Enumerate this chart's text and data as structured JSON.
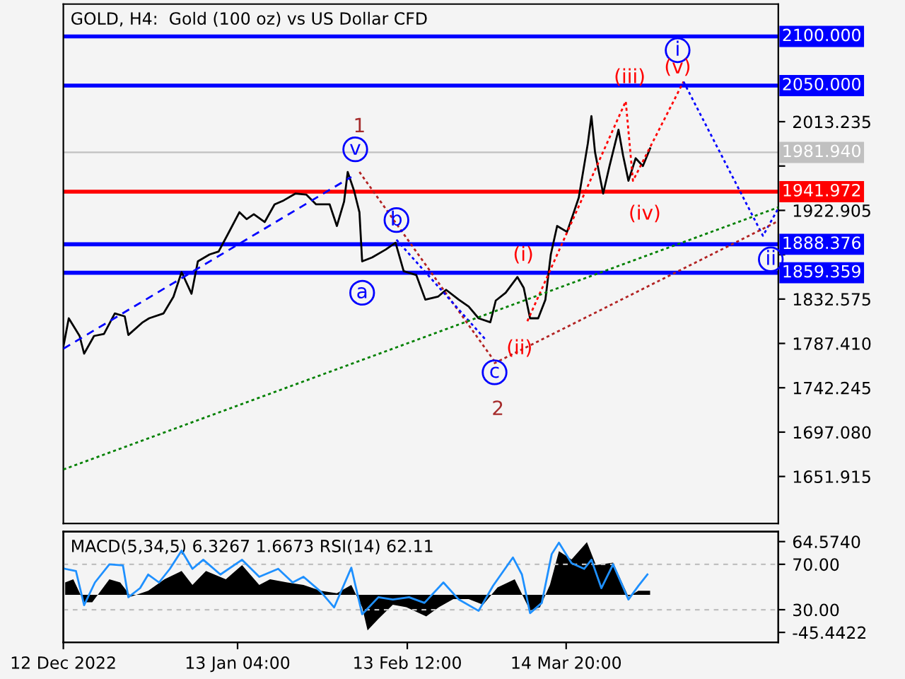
{
  "chart_data": [
    {
      "type": "line",
      "title": "GOLD, H4:  Gold (100 oz) vs US Dollar CFD",
      "series": [
        {
          "color": "#000000",
          "line_style": "solid",
          "x": [
            "2022-12-12T00:00",
            "2022-12-13T00:00",
            "2022-12-15T00:00",
            "2022-12-15T20:00",
            "2022-12-17T16:00",
            "2022-12-19T12:00",
            "2022-12-21T12:00",
            "2022-12-23T08:00",
            "2022-12-24T00:00",
            "2022-12-26T16:00",
            "2022-12-27T20:00",
            "2022-12-30T12:00",
            "2023-01-01T08:00",
            "2023-01-02T20:00",
            "2023-01-04T16:00",
            "2023-01-05T20:00",
            "2023-01-08T00:00",
            "2023-01-09T16:00",
            "2023-01-11T12:00",
            "2023-01-13T12:00",
            "2023-01-14T20:00",
            "2023-01-16T04:00",
            "2023-01-18T04:00",
            "2023-01-20T00:00",
            "2023-01-21T16:00",
            "2023-01-23T20:00",
            "2023-01-25T20:00",
            "2023-01-27T16:00",
            "2023-01-30T04:00",
            "2023-01-31T12:00",
            "2023-02-01T20:00",
            "2023-02-02T12:00",
            "2023-02-03T16:00",
            "2023-02-04T16:00",
            "2023-02-05T04:00",
            "2023-02-07T00:00",
            "2023-02-09T12:00",
            "2023-02-11T08:00",
            "2023-02-12T20:00",
            "2023-02-15T04:00",
            "2023-02-16T20:00",
            "2023-02-19T04:00",
            "2023-02-20T16:00",
            "2023-02-23T00:00",
            "2023-02-24T20:00",
            "2023-02-26T16:00",
            "2023-02-28T20:00",
            "2023-03-01T20:00",
            "2023-03-03T16:00",
            "2023-03-05T20:00",
            "2023-03-07T00:00",
            "2023-03-08T04:00",
            "2023-03-09T16:00",
            "2023-03-11T00:00",
            "2023-03-12T00:00",
            "2023-03-13T04:00",
            "2023-03-15T00:00",
            "2023-03-16T00:00",
            "2023-03-17T04:00",
            "2023-03-18T20:00",
            "2023-03-19T12:00",
            "2023-03-20T04:00",
            "2023-03-21T16:00",
            "2023-03-22T20:00",
            "2023-03-24T12:00",
            "2023-03-25T08:00",
            "2023-03-26T08:00",
            "2023-03-27T16:00",
            "2023-03-29T00:00",
            "2023-03-30T08:00"
          ],
          "values": [
            1784,
            1813,
            1795,
            1777,
            1795,
            1797,
            1818,
            1815,
            1796,
            1809,
            1813,
            1818,
            1835,
            1860,
            1838,
            1871,
            1878,
            1881,
            1900,
            1921,
            1914,
            1919,
            1911,
            1929,
            1933,
            1940,
            1939,
            1929,
            1929,
            1907,
            1932,
            1962,
            1943,
            1921,
            1871,
            1875,
            1883,
            1890,
            1861,
            1857,
            1832,
            1835,
            1842,
            1832,
            1825,
            1813,
            1809,
            1831,
            1839,
            1855,
            1844,
            1813,
            1813,
            1832,
            1878,
            1907,
            1901,
            1917,
            1936,
            1991,
            2019,
            1982,
            1940,
            1968,
            2005,
            1979,
            1953,
            1976,
            1968,
            1986
          ]
        },
        {
          "color": "#0000ff",
          "line_style": "dashed",
          "x": [
            "2022-12-12T00:00",
            "2023-02-03T04:00"
          ],
          "values": [
            1782,
            1957
          ]
        },
        {
          "color": "#b22222",
          "line_style": "dotted",
          "x": [
            "2023-02-04T16:00",
            "2023-03-01T12:00"
          ],
          "values": [
            1962,
            1770
          ]
        },
        {
          "color": "#0000ff",
          "line_style": "dotted",
          "x": [
            "2023-02-11T12:00",
            "2023-02-28T04:00"
          ],
          "values": [
            1893,
            1790
          ]
        },
        {
          "color": "#ff0000",
          "line_style": "dotted",
          "x": [
            "2023-03-07T16:00",
            "2023-03-25T20:00",
            "2023-03-27T04:00",
            "2023-04-05T12:00"
          ],
          "values": [
            1810,
            2034,
            1953,
            2054
          ]
        },
        {
          "color": "#0000ff",
          "line_style": "dotted",
          "x": [
            "2023-04-05T12:00",
            "2023-04-20T04:00",
            "2023-04-23T00:00"
          ],
          "values": [
            2054,
            1897,
            1925
          ]
        },
        {
          "color": "#008000",
          "line_style": "dotted",
          "x": [
            "2022-12-12T00:00",
            "2023-04-23T00:00"
          ],
          "values": [
            1659,
            1926
          ]
        },
        {
          "color": "#b22222",
          "line_style": "dotted",
          "x": [
            "2023-03-01T12:00",
            "2023-04-23T00:00"
          ],
          "values": [
            1767,
            1912
          ]
        }
      ],
      "ref_lines": [
        {
          "axis": "y",
          "value": 2100,
          "label": "2100.000",
          "color": "#0000ff"
        },
        {
          "axis": "y",
          "value": 2050,
          "label": "2050.000",
          "color": "#0000ff"
        },
        {
          "axis": "y",
          "value": 1981.94,
          "label": "1981.940",
          "color": "#c0c0c0"
        },
        {
          "axis": "y",
          "value": 1941.972,
          "label": "1941.972",
          "color": "#ff0000"
        },
        {
          "axis": "y",
          "value": 1888.376,
          "label": "1888.376",
          "color": "#0000ff"
        },
        {
          "axis": "y",
          "value": 1859.359,
          "label": "1859.359",
          "color": "#0000ff"
        }
      ],
      "annotations": [
        {
          "text": "1",
          "x": "2023-02-04T16:00",
          "y": 1962
        },
        {
          "text": "2",
          "x": "2023-03-01T12:00",
          "y": 1770
        },
        {
          "text": "v",
          "x": "2023-02-03T04:00",
          "y": 1957
        },
        {
          "text": "b",
          "x": "2023-02-11T12:00",
          "y": 1893
        },
        {
          "text": "a",
          "x": "2023-02-05T04:00",
          "y": 1871
        },
        {
          "text": "c",
          "x": "2023-02-28T04:00",
          "y": 1790
        },
        {
          "text": "i",
          "x": "2023-04-05T12:00",
          "y": 2054
        },
        {
          "text": "ii",
          "x": "2023-04-20T04:00",
          "y": 1897
        },
        {
          "text": "(i)",
          "x": "2023-03-05T20:00",
          "y": 1855
        },
        {
          "text": "(ii)",
          "x": "2023-03-07T16:00",
          "y": 1810
        },
        {
          "text": "(iii)",
          "x": "2023-03-25T20:00",
          "y": 2034
        },
        {
          "text": "(iv)",
          "x": "2023-03-27T04:00",
          "y": 1953
        },
        {
          "text": "(v)",
          "x": "2023-04-05T12:00",
          "y": 2054
        }
      ],
      "xlim": [
        "2022-12-12T00:00",
        "2023-04-23T00:00"
      ],
      "ylim": [
        1604,
        2133
      ],
      "yticks": [
        {
          "value": 1651.915,
          "label": "1651.915"
        },
        {
          "value": 1697.08,
          "label": "1697.080"
        },
        {
          "value": 1742.245,
          "label": "1742.245"
        },
        {
          "value": 1787.41,
          "label": "1787.410"
        },
        {
          "value": 1832.575,
          "label": "1832.575"
        },
        {
          "value": 1877.74,
          "label": null
        },
        {
          "value": 1922.905,
          "label": "1922.905"
        },
        {
          "value": 1968.07,
          "label": null
        },
        {
          "value": 2013.235,
          "label": "2013.235"
        }
      ],
      "grid": false
    },
    {
      "type": "area",
      "title": "MACD(5,34,5) 6.3267 1.6673 RSI(14) 62.11",
      "series": [
        {
          "color": "#000000",
          "axis": "y2",
          "x": [
            "2022-12-12T08:00",
            "2022-12-13T20:00",
            "2022-12-15T20:00",
            "2022-12-17T08:00",
            "2022-12-20T12:00",
            "2022-12-22T12:00",
            "2022-12-24T12:00",
            "2022-12-27T16:00",
            "2022-12-30T16:00",
            "2023-01-02T20:00",
            "2023-01-04T20:00",
            "2023-01-07T08:00",
            "2023-01-11T00:00",
            "2023-01-14T00:00",
            "2023-01-17T04:00",
            "2023-01-19T04:00",
            "2023-01-22T08:00",
            "2023-01-25T08:00",
            "2023-01-28T12:00",
            "2023-01-31T12:00",
            "2023-02-03T04:00",
            "2023-02-05T04:00",
            "2023-02-06T04:00",
            "2023-02-08T04:00",
            "2023-02-10T20:00",
            "2023-02-13T08:00",
            "2023-02-17T00:00",
            "2023-02-19T08:00",
            "2023-02-22T00:00",
            "2023-02-24T20:00",
            "2023-02-27T12:00",
            "2023-03-02T04:00",
            "2023-03-05T08:00",
            "2023-03-08T04:00",
            "2023-03-10T00:00",
            "2023-03-11T20:00",
            "2023-03-13T12:00",
            "2023-03-15T20:00",
            "2023-03-18T16:00",
            "2023-03-20T08:00",
            "2023-03-23T12:00",
            "2023-03-26T08:00",
            "2023-03-28T04:00",
            "2023-03-30T08:00"
          ],
          "values": [
            15,
            19,
            -9,
            -9,
            19,
            15,
            -2,
            5,
            19,
            29,
            12,
            29,
            19,
            36,
            12,
            19,
            15,
            12,
            5,
            2,
            12,
            -15,
            -43,
            -29,
            -12,
            -15,
            -26,
            -15,
            -5,
            -5,
            -12,
            9,
            19,
            -19,
            -15,
            12,
            53,
            43,
            64,
            36,
            39,
            -2,
            5,
            5
          ]
        },
        {
          "type": "line",
          "color": "#1e90ff",
          "x": [
            "2022-12-12T08:00",
            "2022-12-14T08:00",
            "2022-12-15T20:00",
            "2022-12-17T20:00",
            "2022-12-20T12:00",
            "2022-12-23T00:00",
            "2022-12-24T00:00",
            "2022-12-26T04:00",
            "2022-12-27T16:00",
            "2022-12-29T16:00",
            "2022-12-31T16:00",
            "2023-01-02T20:00",
            "2023-01-04T20:00",
            "2023-01-06T20:00",
            "2023-01-10T00:00",
            "2023-01-14T00:00",
            "2023-01-17T04:00",
            "2023-01-20T16:00",
            "2023-01-23T08:00",
            "2023-01-25T08:00",
            "2023-01-28T12:00",
            "2023-01-31T00:00",
            "2023-02-03T04:00",
            "2023-02-05T04:00",
            "2023-02-08T04:00",
            "2023-02-10T20:00",
            "2023-02-13T20:00",
            "2023-02-16T16:00",
            "2023-02-20T04:00",
            "2023-02-23T00:00",
            "2023-02-26T16:00",
            "2023-03-01T08:00",
            "2023-03-05T00:00",
            "2023-03-06T16:00",
            "2023-03-08T04:00",
            "2023-03-10T08:00",
            "2023-03-12T04:00",
            "2023-03-13T12:00",
            "2023-03-15T20:00",
            "2023-03-18T04:00",
            "2023-03-19T12:00",
            "2023-03-21T08:00",
            "2023-03-23T12:00",
            "2023-03-26T08:00",
            "2023-03-28T04:00",
            "2023-03-29T20:00"
          ],
          "values": [
            66,
            64,
            34,
            54,
            70,
            69,
            41,
            49,
            61,
            54,
            66,
            82,
            66,
            74,
            61,
            74,
            59,
            66,
            54,
            59,
            46,
            32,
            67,
            26,
            41,
            39,
            41,
            36,
            54,
            39,
            29,
            51,
            76,
            61,
            27,
            36,
            79,
            89,
            71,
            66,
            74,
            49,
            70,
            39,
            51,
            61
          ]
        }
      ],
      "xlim": [
        "2022-12-12T00:00",
        "2023-04-23T00:00"
      ],
      "ylim": [
        1.25,
        98.75
      ],
      "yticks": [
        {
          "value": 30,
          "label": "30.00"
        },
        {
          "value": 70,
          "label": "70.00"
        }
      ],
      "y2lim": [
        -57.5,
        76.6
      ],
      "y2ticks": [
        {
          "value": -45.4422,
          "label": "-45.4422"
        },
        {
          "value": 64.574,
          "label": "64.5740"
        }
      ],
      "xticks": [
        {
          "value": "2022-12-12T00:00",
          "label": "12 Dec 2022"
        },
        {
          "value": "2023-01-13T04:00",
          "label": "13 Jan 04:00"
        },
        {
          "value": "2023-02-13T12:00",
          "label": "13 Feb 12:00"
        },
        {
          "value": "2023-03-14T20:00",
          "label": "14 Mar 20:00"
        }
      ],
      "grid": "y"
    }
  ]
}
